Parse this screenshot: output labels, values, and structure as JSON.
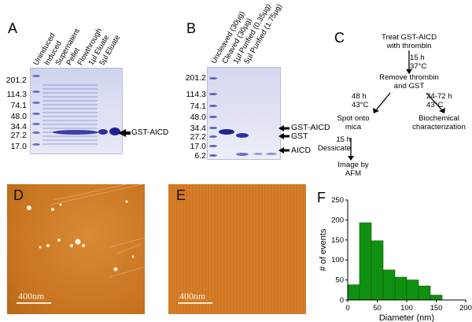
{
  "panels": {
    "A": {
      "label": "A",
      "lanes": [
        "Uninduced",
        "Induced",
        "Supernatent",
        "Pellet",
        "Flowthrough",
        "1µl Eluate",
        "5µl Eluate"
      ],
      "markers": [
        "201.2",
        "114.3",
        "74.1",
        "48.0",
        "34.4",
        "27.2",
        "17.0"
      ],
      "annotation": "GST-AICD"
    },
    "B": {
      "label": "B",
      "lanes": [
        "Uncleaved (30µg)",
        "Cleaved (30µg)",
        "1µl Purified (0.35µg)",
        "5µl Purified (1.75µg)"
      ],
      "markers": [
        "201.2",
        "114.3",
        "74.1",
        "48.0",
        "34.4",
        "27.2",
        "17.0",
        "6.2"
      ],
      "annotations": [
        "GST-AICD",
        "GST",
        "AICD"
      ]
    },
    "C": {
      "label": "C",
      "start": "Treat GST-AICD\nwith thrombin",
      "step1_cond": "15 h\n37°C",
      "step2": "Remove thrombin\nand GST",
      "left_cond": "48 h\n43°C",
      "right_cond": "24-72 h\n43°C",
      "left_node": "Spot onto\nmica",
      "right_node": "Biochemical\ncharacterization",
      "dessicate_cond": "15 h\nDessicate",
      "final_node": "Image by\nAFM"
    },
    "D": {
      "label": "D",
      "scale": "400nm"
    },
    "E": {
      "label": "E",
      "scale": "400nm"
    },
    "F": {
      "label": "F"
    }
  },
  "chart_data": {
    "type": "bar",
    "title": "",
    "xlabel": "Diameter (nm)",
    "ylabel": "# of events",
    "xlim": [
      0,
      200
    ],
    "ylim": [
      0,
      250
    ],
    "xticks": [
      0,
      50,
      100,
      150,
      200
    ],
    "yticks": [
      0,
      50,
      100,
      150,
      200,
      250
    ],
    "bin_width": 20,
    "bins": [
      10,
      30,
      50,
      70,
      90,
      110,
      130,
      150
    ],
    "values": [
      38,
      193,
      148,
      75,
      57,
      50,
      35,
      12
    ],
    "color": "#109010"
  }
}
